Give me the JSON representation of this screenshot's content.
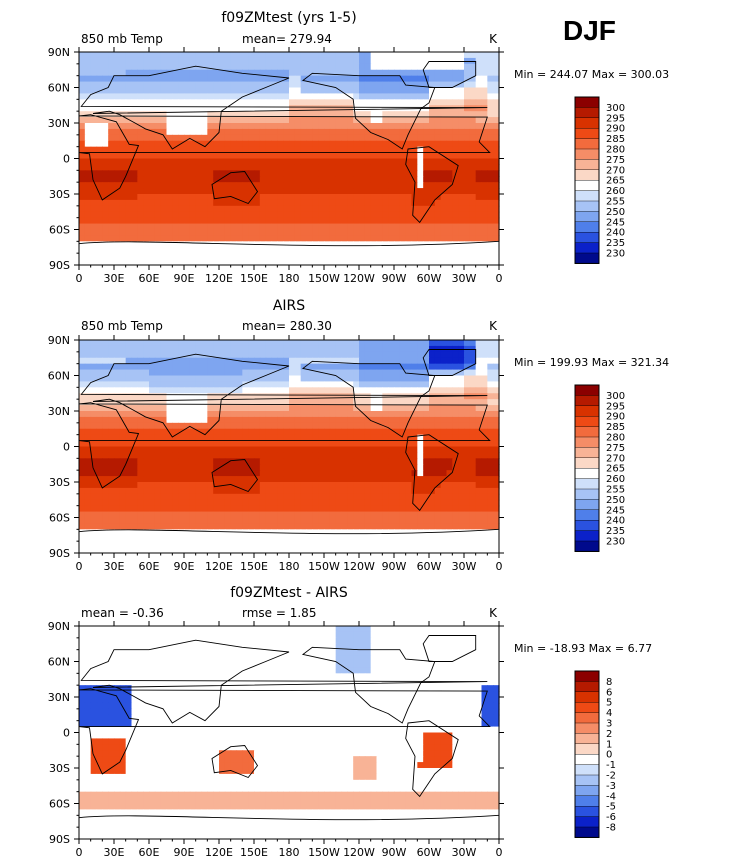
{
  "season_label": "DJF",
  "chart_data": [
    {
      "type": "heatmap",
      "title": "f09ZMtest (yrs 1-5)",
      "left_label": "850 mb Temp",
      "center_label": "mean= 279.94",
      "units": "K",
      "min_max": "Min = 244.07 Max = 300.03",
      "field": "model",
      "zmin": 244.07,
      "zmax": 300.03,
      "mean": 279.94,
      "colorbar": {
        "levels": [
          "300",
          "295",
          "290",
          "285",
          "280",
          "275",
          "270",
          "265",
          "260",
          "255",
          "250",
          "245",
          "240",
          "235",
          "230"
        ],
        "colors": [
          "#8b0000",
          "#b51a00",
          "#d83200",
          "#ee4a15",
          "#f26b3d",
          "#f58d67",
          "#f8b396",
          "#fbd8c6",
          "#ffffff",
          "#cfe0fa",
          "#a7c3f5",
          "#7ea5f0",
          "#4f7fea",
          "#2a52e0",
          "#0b21c9",
          "#000a8c"
        ]
      },
      "x_ticks": [
        "0",
        "30E",
        "60E",
        "90E",
        "120E",
        "150E",
        "180",
        "150W",
        "120W",
        "90W",
        "60W",
        "30W",
        "0"
      ],
      "y_ticks": [
        "90N",
        "60N",
        "30N",
        "0",
        "30S",
        "60S",
        "90S"
      ],
      "x_range": [
        0,
        360
      ],
      "y_range": [
        -90,
        90
      ]
    },
    {
      "type": "heatmap",
      "title": "AIRS",
      "left_label": "850 mb Temp",
      "center_label": "mean= 280.30",
      "units": "K",
      "min_max": "Min = 199.93 Max = 321.34",
      "field": "obs",
      "zmin": 199.93,
      "zmax": 321.34,
      "mean": 280.3,
      "colorbar": {
        "levels": [
          "300",
          "295",
          "290",
          "285",
          "280",
          "275",
          "270",
          "265",
          "260",
          "255",
          "250",
          "245",
          "240",
          "235",
          "230"
        ],
        "colors": [
          "#8b0000",
          "#b51a00",
          "#d83200",
          "#ee4a15",
          "#f26b3d",
          "#f58d67",
          "#f8b396",
          "#fbd8c6",
          "#ffffff",
          "#cfe0fa",
          "#a7c3f5",
          "#7ea5f0",
          "#4f7fea",
          "#2a52e0",
          "#0b21c9",
          "#000a8c"
        ]
      },
      "x_ticks": [
        "0",
        "30E",
        "60E",
        "90E",
        "120E",
        "150E",
        "180",
        "150W",
        "120W",
        "90W",
        "60W",
        "30W",
        "0"
      ],
      "y_ticks": [
        "90N",
        "60N",
        "30N",
        "0",
        "30S",
        "60S",
        "90S"
      ],
      "x_range": [
        0,
        360
      ],
      "y_range": [
        -90,
        90
      ]
    },
    {
      "type": "heatmap",
      "title": "f09ZMtest - AIRS",
      "left_label": "mean =   -0.36",
      "center_label": "rmse =    1.85",
      "units": "K",
      "min_max": "Min = -18.93 Max =    6.77",
      "field": "diff",
      "zmin": -18.93,
      "zmax": 6.77,
      "mean": -0.36,
      "rmse": 1.85,
      "colorbar": {
        "levels": [
          "8",
          "6",
          "5",
          "4",
          "3",
          "2",
          "1",
          "0",
          "-1",
          "-2",
          "-3",
          "-4",
          "-5",
          "-6",
          "-8"
        ],
        "colors": [
          "#8b0000",
          "#b51a00",
          "#d83200",
          "#ee4a15",
          "#f26b3d",
          "#f58d67",
          "#f8b396",
          "#fbd8c6",
          "#ffffff",
          "#cfe0fa",
          "#a7c3f5",
          "#7ea5f0",
          "#4f7fea",
          "#2a52e0",
          "#0b21c9",
          "#000a8c"
        ]
      },
      "x_ticks": [
        "0",
        "30E",
        "60E",
        "90E",
        "120E",
        "150E",
        "180",
        "150W",
        "120W",
        "90W",
        "60W",
        "30W",
        "0"
      ],
      "y_ticks": [
        "90N",
        "60N",
        "30N",
        "0",
        "30S",
        "60S",
        "90S"
      ],
      "x_range": [
        0,
        360
      ],
      "y_range": [
        -90,
        90
      ]
    }
  ]
}
